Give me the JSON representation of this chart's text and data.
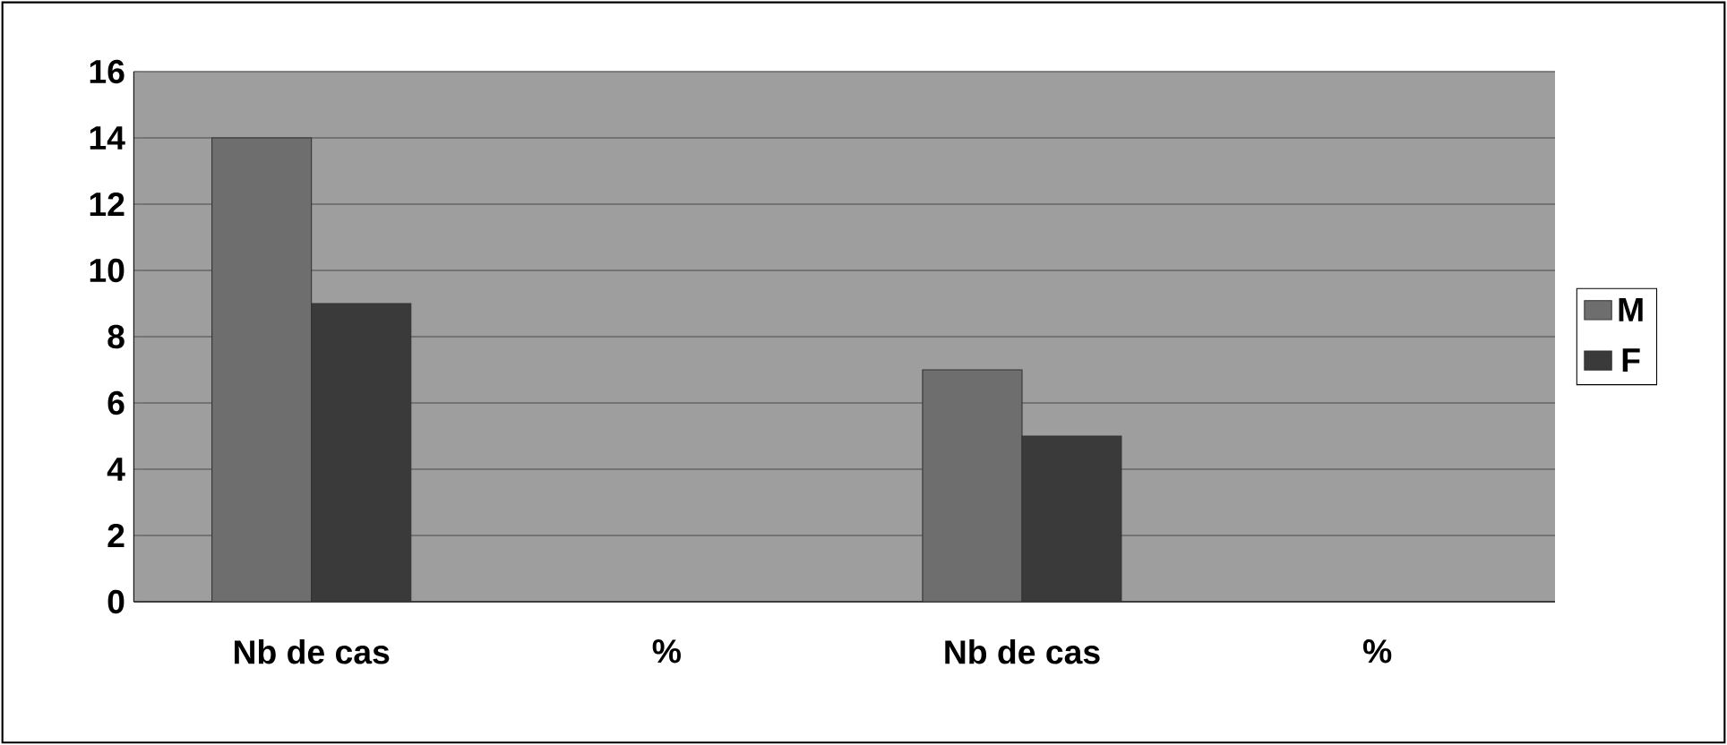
{
  "chart_data": {
    "type": "bar",
    "categories": [
      "Nb de cas",
      "%",
      "Nb de cas",
      "%"
    ],
    "series": [
      {
        "name": "M",
        "color": "#6e6e6e",
        "values": [
          14,
          null,
          7,
          null
        ]
      },
      {
        "name": "F",
        "color": "#3a3a3a",
        "values": [
          9,
          null,
          5,
          null
        ]
      }
    ],
    "ylim": [
      0,
      16
    ],
    "yticks": [
      0,
      2,
      4,
      6,
      8,
      10,
      12,
      14,
      16
    ],
    "grid": "y",
    "legend": "right"
  }
}
